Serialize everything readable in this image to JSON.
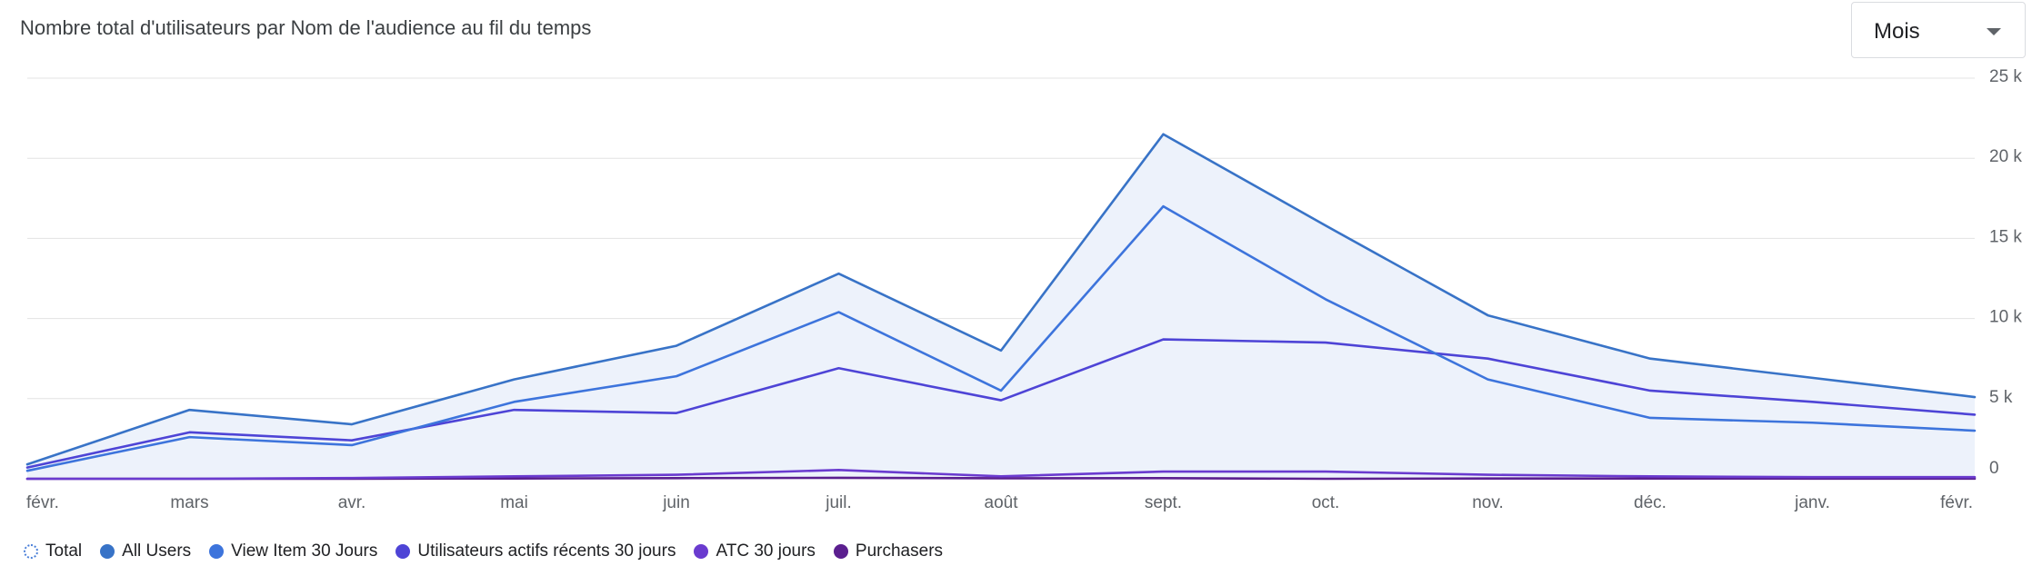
{
  "header": {
    "title": "Nombre total d'utilisateurs par Nom de l'audience au fil du temps",
    "period_select": {
      "value": "Mois"
    }
  },
  "colors": {
    "total": "#4a7fd8",
    "all_users": "#3873c7",
    "view_item": "#3d74dc",
    "recent_active": "#4e44d6",
    "atc": "#6a3bcf",
    "purchasers": "#5b1f8f",
    "area_fill": "#edf2fb",
    "grid": "#e3e3e3",
    "axis_text": "#5f6368"
  },
  "chart_data": {
    "type": "area",
    "title": "Nombre total d'utilisateurs par Nom de l'audience au fil du temps",
    "categories": [
      "févr.",
      "mars",
      "avr.",
      "mai",
      "juin",
      "juil.",
      "août",
      "sept.",
      "oct.",
      "nov.",
      "déc.",
      "janv.",
      "févr."
    ],
    "y_ticks": [
      "0",
      "5 k",
      "10 k",
      "15 k",
      "20 k",
      "25 k"
    ],
    "y_tick_values": [
      0,
      5000,
      10000,
      15000,
      20000,
      25000
    ],
    "ylim": [
      0,
      25000
    ],
    "y_axis_side": "right",
    "grid": true,
    "legend_position": "bottom-left",
    "area_series": "Total",
    "series": [
      {
        "name": "Total",
        "style": "dashed",
        "color_key": "total",
        "values": [
          900,
          4300,
          3400,
          6200,
          8300,
          12800,
          8000,
          21500,
          15800,
          10200,
          7500,
          6300,
          5100
        ]
      },
      {
        "name": "All Users",
        "color_key": "all_users",
        "values": [
          900,
          4300,
          3400,
          6200,
          8300,
          12800,
          8000,
          21500,
          15800,
          10200,
          7500,
          6300,
          5100
        ]
      },
      {
        "name": "View Item 30 Jours",
        "color_key": "view_item",
        "values": [
          500,
          2600,
          2100,
          4800,
          6400,
          10400,
          5500,
          17000,
          11200,
          6200,
          3800,
          3500,
          3000
        ]
      },
      {
        "name": "Utilisateurs actifs récents 30 jours",
        "color_key": "recent_active",
        "values": [
          700,
          2900,
          2400,
          4300,
          4100,
          6900,
          4900,
          8700,
          8500,
          7500,
          5500,
          4800,
          4000
        ]
      },
      {
        "name": "ATC 30 jours",
        "color_key": "atc",
        "values": [
          0,
          0,
          50,
          150,
          250,
          550,
          150,
          450,
          450,
          250,
          150,
          100,
          100
        ]
      },
      {
        "name": "Purchasers",
        "color_key": "purchasers",
        "values": [
          0,
          0,
          0,
          20,
          40,
          60,
          30,
          40,
          0,
          20,
          20,
          10,
          10
        ]
      }
    ]
  }
}
